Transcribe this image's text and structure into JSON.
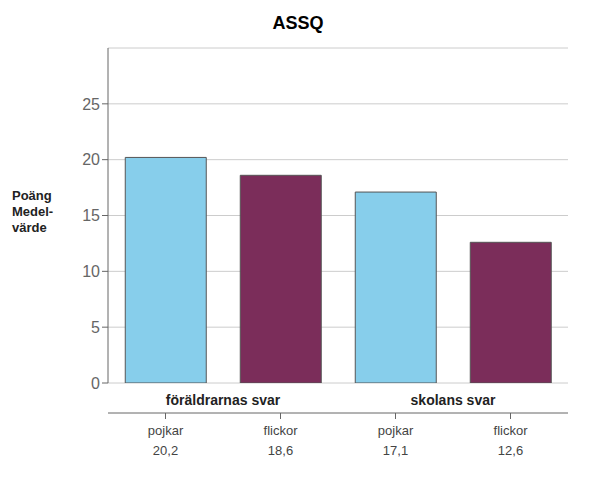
{
  "chart_data": {
    "type": "bar",
    "title": "ASSQ",
    "ylabel": "Poäng\nMedel-\nvärde",
    "categories": [
      "pojkar",
      "flickor",
      "pojkar",
      "flickor"
    ],
    "values": [
      20.2,
      18.6,
      17.1,
      12.6
    ],
    "value_labels": [
      "20,2",
      "18,6",
      "17,1",
      "12,6"
    ],
    "colors": [
      "#87CEEB",
      "#7B2D5A",
      "#87CEEB",
      "#7B2D5A"
    ],
    "group_labels": [
      "föräldrarnas svar",
      "skolans svar"
    ],
    "ylim": [
      0,
      30
    ],
    "yticks": [
      0,
      5,
      10,
      15,
      20,
      25
    ],
    "grid": true,
    "data_labels": true
  }
}
